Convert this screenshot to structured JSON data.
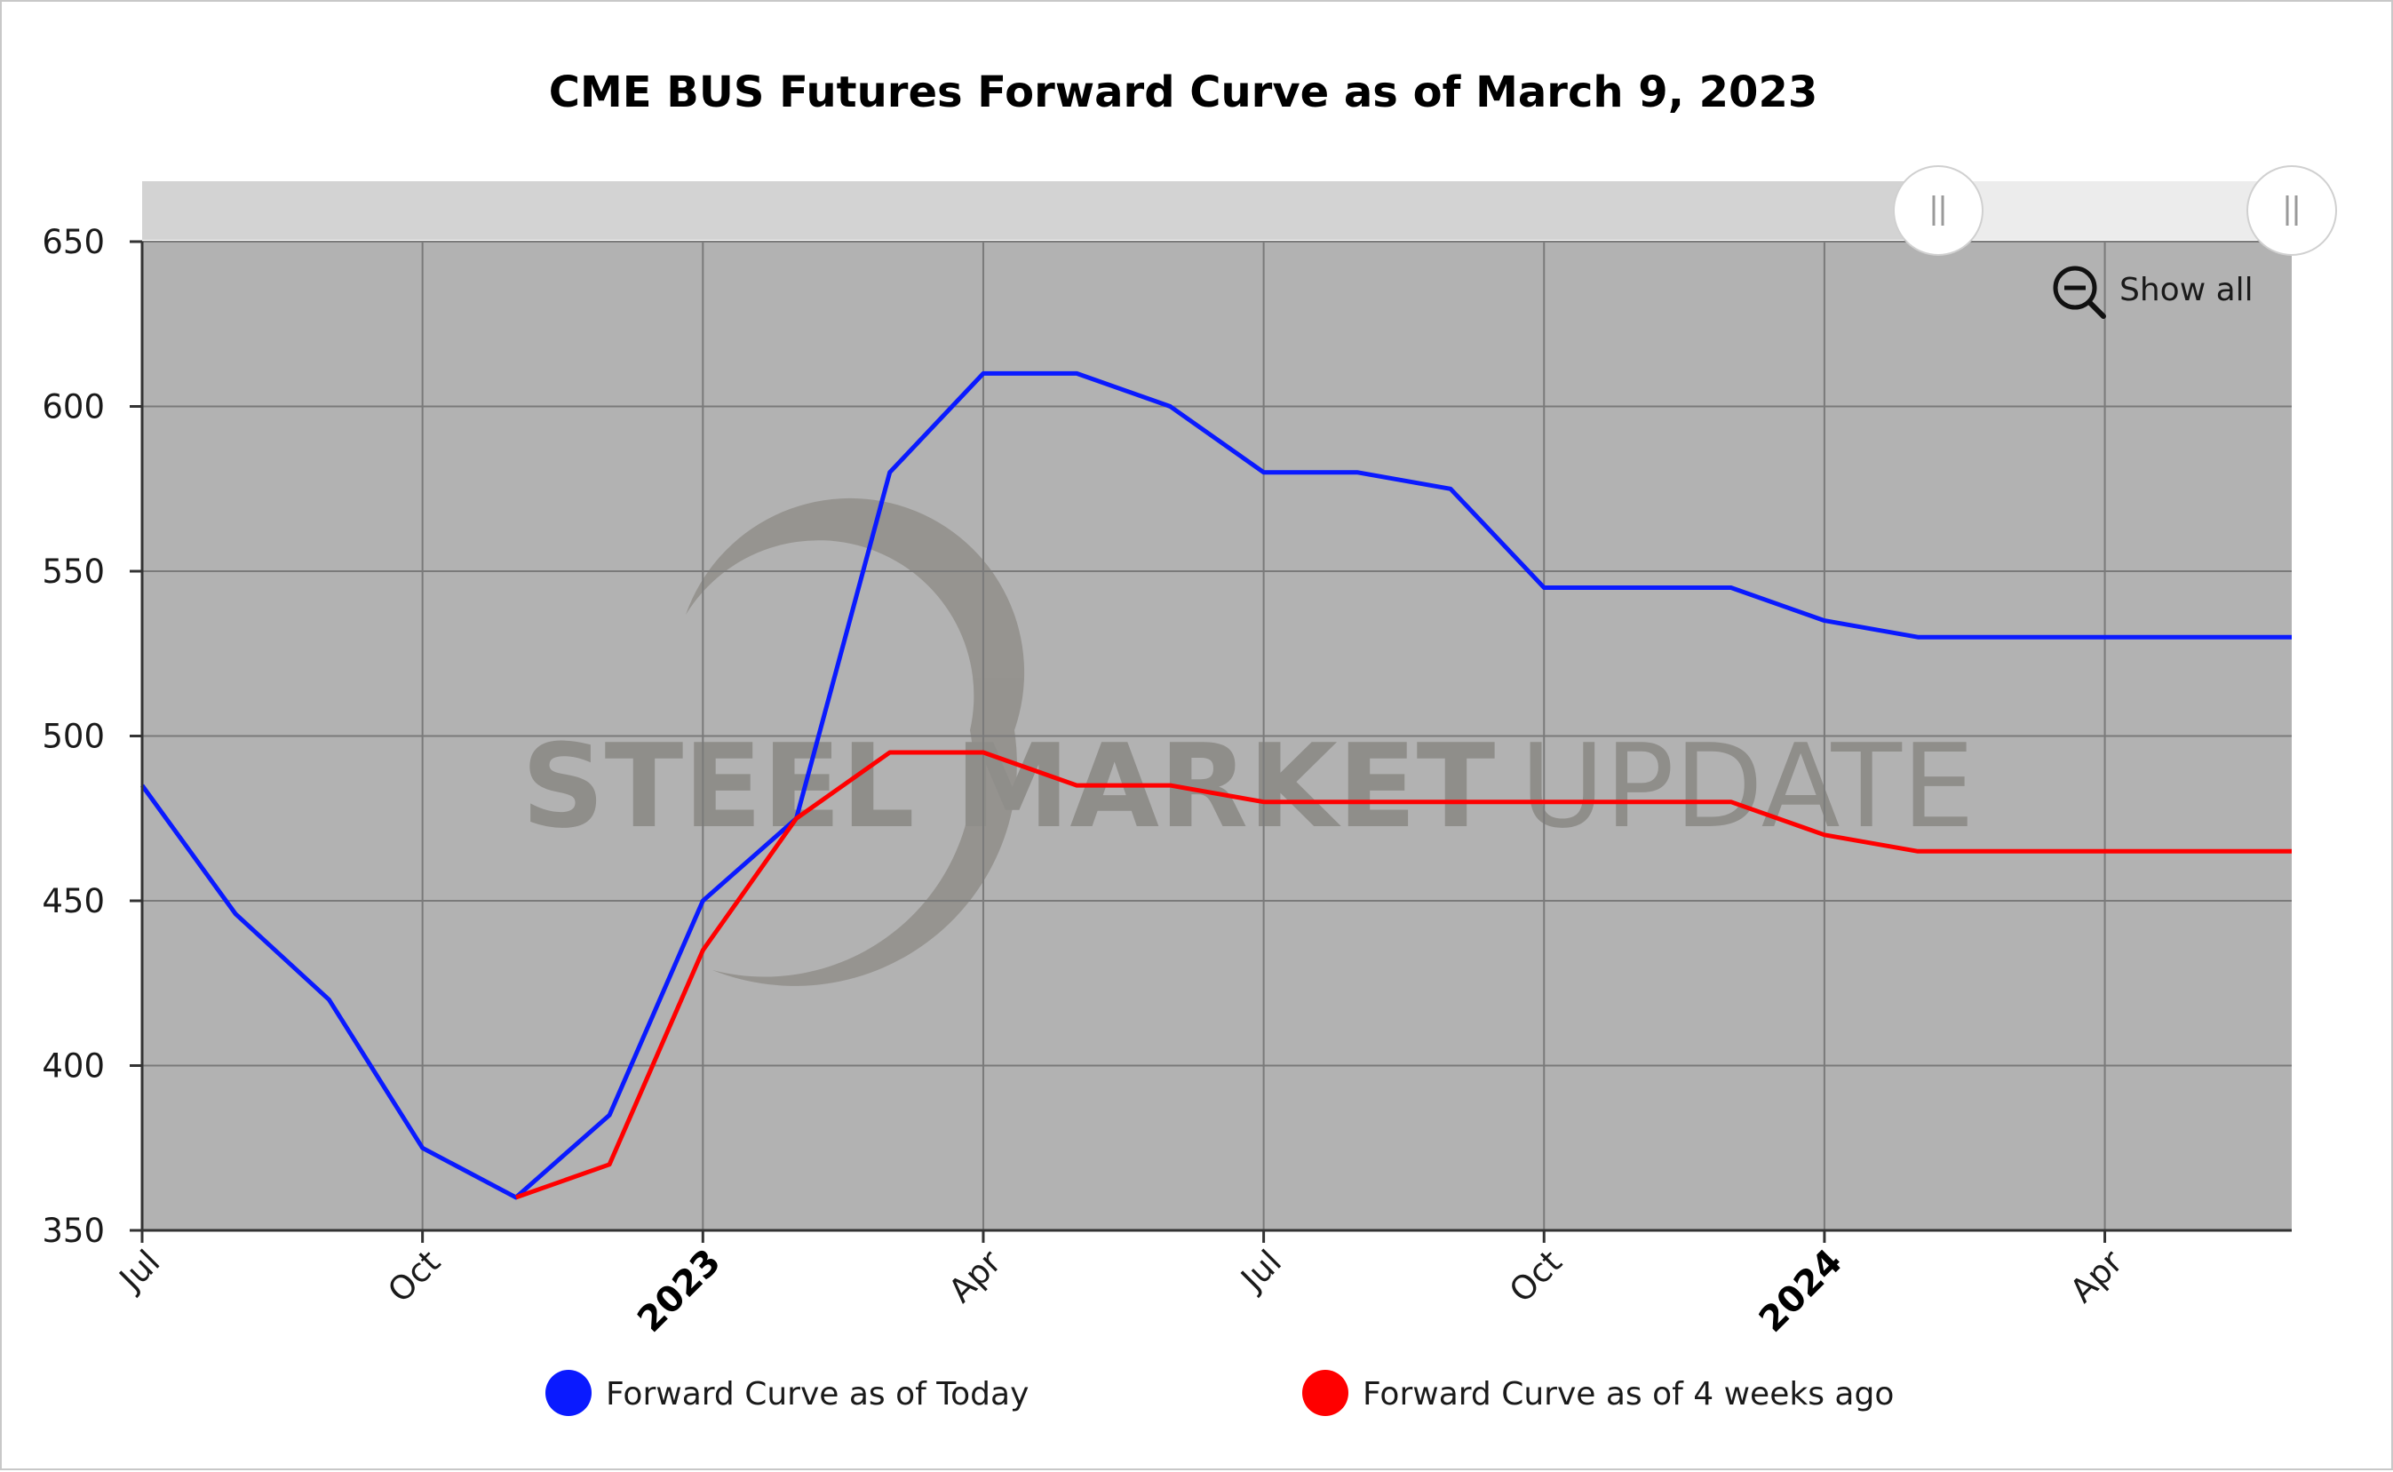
{
  "chart_data": {
    "type": "line",
    "title": "CME BUS Futures Forward Curve as of March 9, 2023",
    "xlabel": "",
    "ylabel": "",
    "x_range": [
      "2022-07",
      "2024-06"
    ],
    "ylim": [
      350,
      650
    ],
    "y_ticks": [
      350,
      400,
      450,
      500,
      550,
      600,
      650
    ],
    "x_ticks": [
      {
        "date": "2022-07",
        "label": "Jul",
        "bold": false
      },
      {
        "date": "2022-10",
        "label": "Oct",
        "bold": false
      },
      {
        "date": "2023-01",
        "label": "2023",
        "bold": true
      },
      {
        "date": "2023-04",
        "label": "Apr",
        "bold": false
      },
      {
        "date": "2023-07",
        "label": "Jul",
        "bold": false
      },
      {
        "date": "2023-10",
        "label": "Oct",
        "bold": false
      },
      {
        "date": "2024-01",
        "label": "2024",
        "bold": true
      },
      {
        "date": "2024-04",
        "label": "Apr",
        "bold": false
      }
    ],
    "grid": true,
    "legend_position": "bottom",
    "series": [
      {
        "name": "Forward Curve as of Today",
        "color": "#0a1aff",
        "points": [
          [
            "2022-07",
            485
          ],
          [
            "2022-08",
            446
          ],
          [
            "2022-09",
            420
          ],
          [
            "2022-10",
            375
          ],
          [
            "2022-11",
            360
          ],
          [
            "2022-12",
            385
          ],
          [
            "2023-01",
            450
          ],
          [
            "2023-02",
            475
          ],
          [
            "2023-03",
            580
          ],
          [
            "2023-04",
            610
          ],
          [
            "2023-05",
            610
          ],
          [
            "2023-06",
            600
          ],
          [
            "2023-07",
            580
          ],
          [
            "2023-08",
            580
          ],
          [
            "2023-09",
            575
          ],
          [
            "2023-10",
            545
          ],
          [
            "2023-11",
            545
          ],
          [
            "2023-12",
            545
          ],
          [
            "2024-01",
            535
          ],
          [
            "2024-02",
            530
          ],
          [
            "2024-03",
            530
          ],
          [
            "2024-04",
            530
          ],
          [
            "2024-05",
            530
          ],
          [
            "2024-06",
            530
          ]
        ]
      },
      {
        "name": "Forward Curve as of 4 weeks ago",
        "color": "#ff0000",
        "points": [
          [
            "2022-11",
            360
          ],
          [
            "2022-12",
            370
          ],
          [
            "2023-01",
            435
          ],
          [
            "2023-02",
            475
          ],
          [
            "2023-03",
            495
          ],
          [
            "2023-04",
            495
          ],
          [
            "2023-05",
            485
          ],
          [
            "2023-06",
            485
          ],
          [
            "2023-07",
            480
          ],
          [
            "2023-08",
            480
          ],
          [
            "2023-09",
            480
          ],
          [
            "2023-10",
            480
          ],
          [
            "2023-11",
            480
          ],
          [
            "2023-12",
            480
          ],
          [
            "2024-01",
            470
          ],
          [
            "2024-02",
            465
          ],
          [
            "2024-03",
            465
          ],
          [
            "2024-04",
            465
          ],
          [
            "2024-05",
            465
          ],
          [
            "2024-06",
            465
          ]
        ]
      }
    ],
    "annotations": [
      "STEEL MARKET UPDATE"
    ]
  },
  "controls": {
    "show_all_label": "Show all",
    "zoom_icon": "zoom-out-icon",
    "navigator_handle_icon": "grip-handle-icon"
  },
  "watermark": {
    "bold_part": "STEEL MARKET",
    "light_part": "UPDATE"
  },
  "colors": {
    "plot_background": "#b2b2b2",
    "navigator_band": "#d3d3d3",
    "navigator_selected": "#ececec"
  }
}
